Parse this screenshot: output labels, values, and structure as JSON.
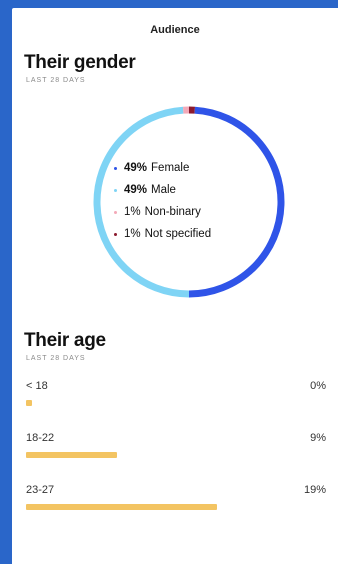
{
  "header": {
    "title": "Audience"
  },
  "gender": {
    "title": "Their gender",
    "subtitle": "LAST 28 DAYS",
    "segments": [
      {
        "pct": 49,
        "pct_label": "49%",
        "label": "Female",
        "color": "#2f54e8"
      },
      {
        "pct": 49,
        "pct_label": "49%",
        "label": "Male",
        "color": "#7fd4f5"
      },
      {
        "pct": 1,
        "pct_label": "1%",
        "label": "Non-binary",
        "color": "#f3a9b8"
      },
      {
        "pct": 1,
        "pct_label": "1%",
        "label": "Not specified",
        "color": "#8b1a2e"
      }
    ]
  },
  "age": {
    "title": "Their age",
    "subtitle": "LAST 28 DAYS",
    "rows": [
      {
        "label": "< 18",
        "value_label": "0%",
        "value": 0
      },
      {
        "label": "18-22",
        "value_label": "9%",
        "value": 9
      },
      {
        "label": "23-27",
        "value_label": "19%",
        "value": 19
      }
    ],
    "bar_color": "#f3c462"
  }
}
